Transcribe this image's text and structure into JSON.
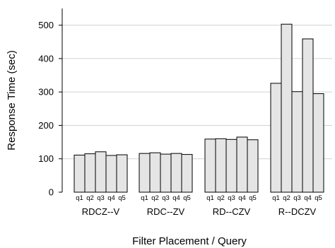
{
  "chart_data": {
    "type": "bar",
    "title": "",
    "xlabel": "Filter Placement / Query",
    "ylabel": "Response Time (sec)",
    "ylim": [
      0,
      550
    ],
    "yticks": [
      0,
      100,
      200,
      300,
      400,
      500
    ],
    "grid": true,
    "query_labels": [
      "q1",
      "q2",
      "q3",
      "q4",
      "q5"
    ],
    "groups": [
      {
        "name": "RDCZ--V",
        "values": [
          111,
          115,
          121,
          110,
          112
        ]
      },
      {
        "name": "RDC--ZV",
        "values": [
          116,
          118,
          114,
          116,
          113
        ]
      },
      {
        "name": "RD--CZV",
        "values": [
          159,
          160,
          158,
          165,
          157
        ]
      },
      {
        "name": "R--DCZV",
        "values": [
          326,
          503,
          301,
          459,
          295
        ]
      }
    ]
  }
}
